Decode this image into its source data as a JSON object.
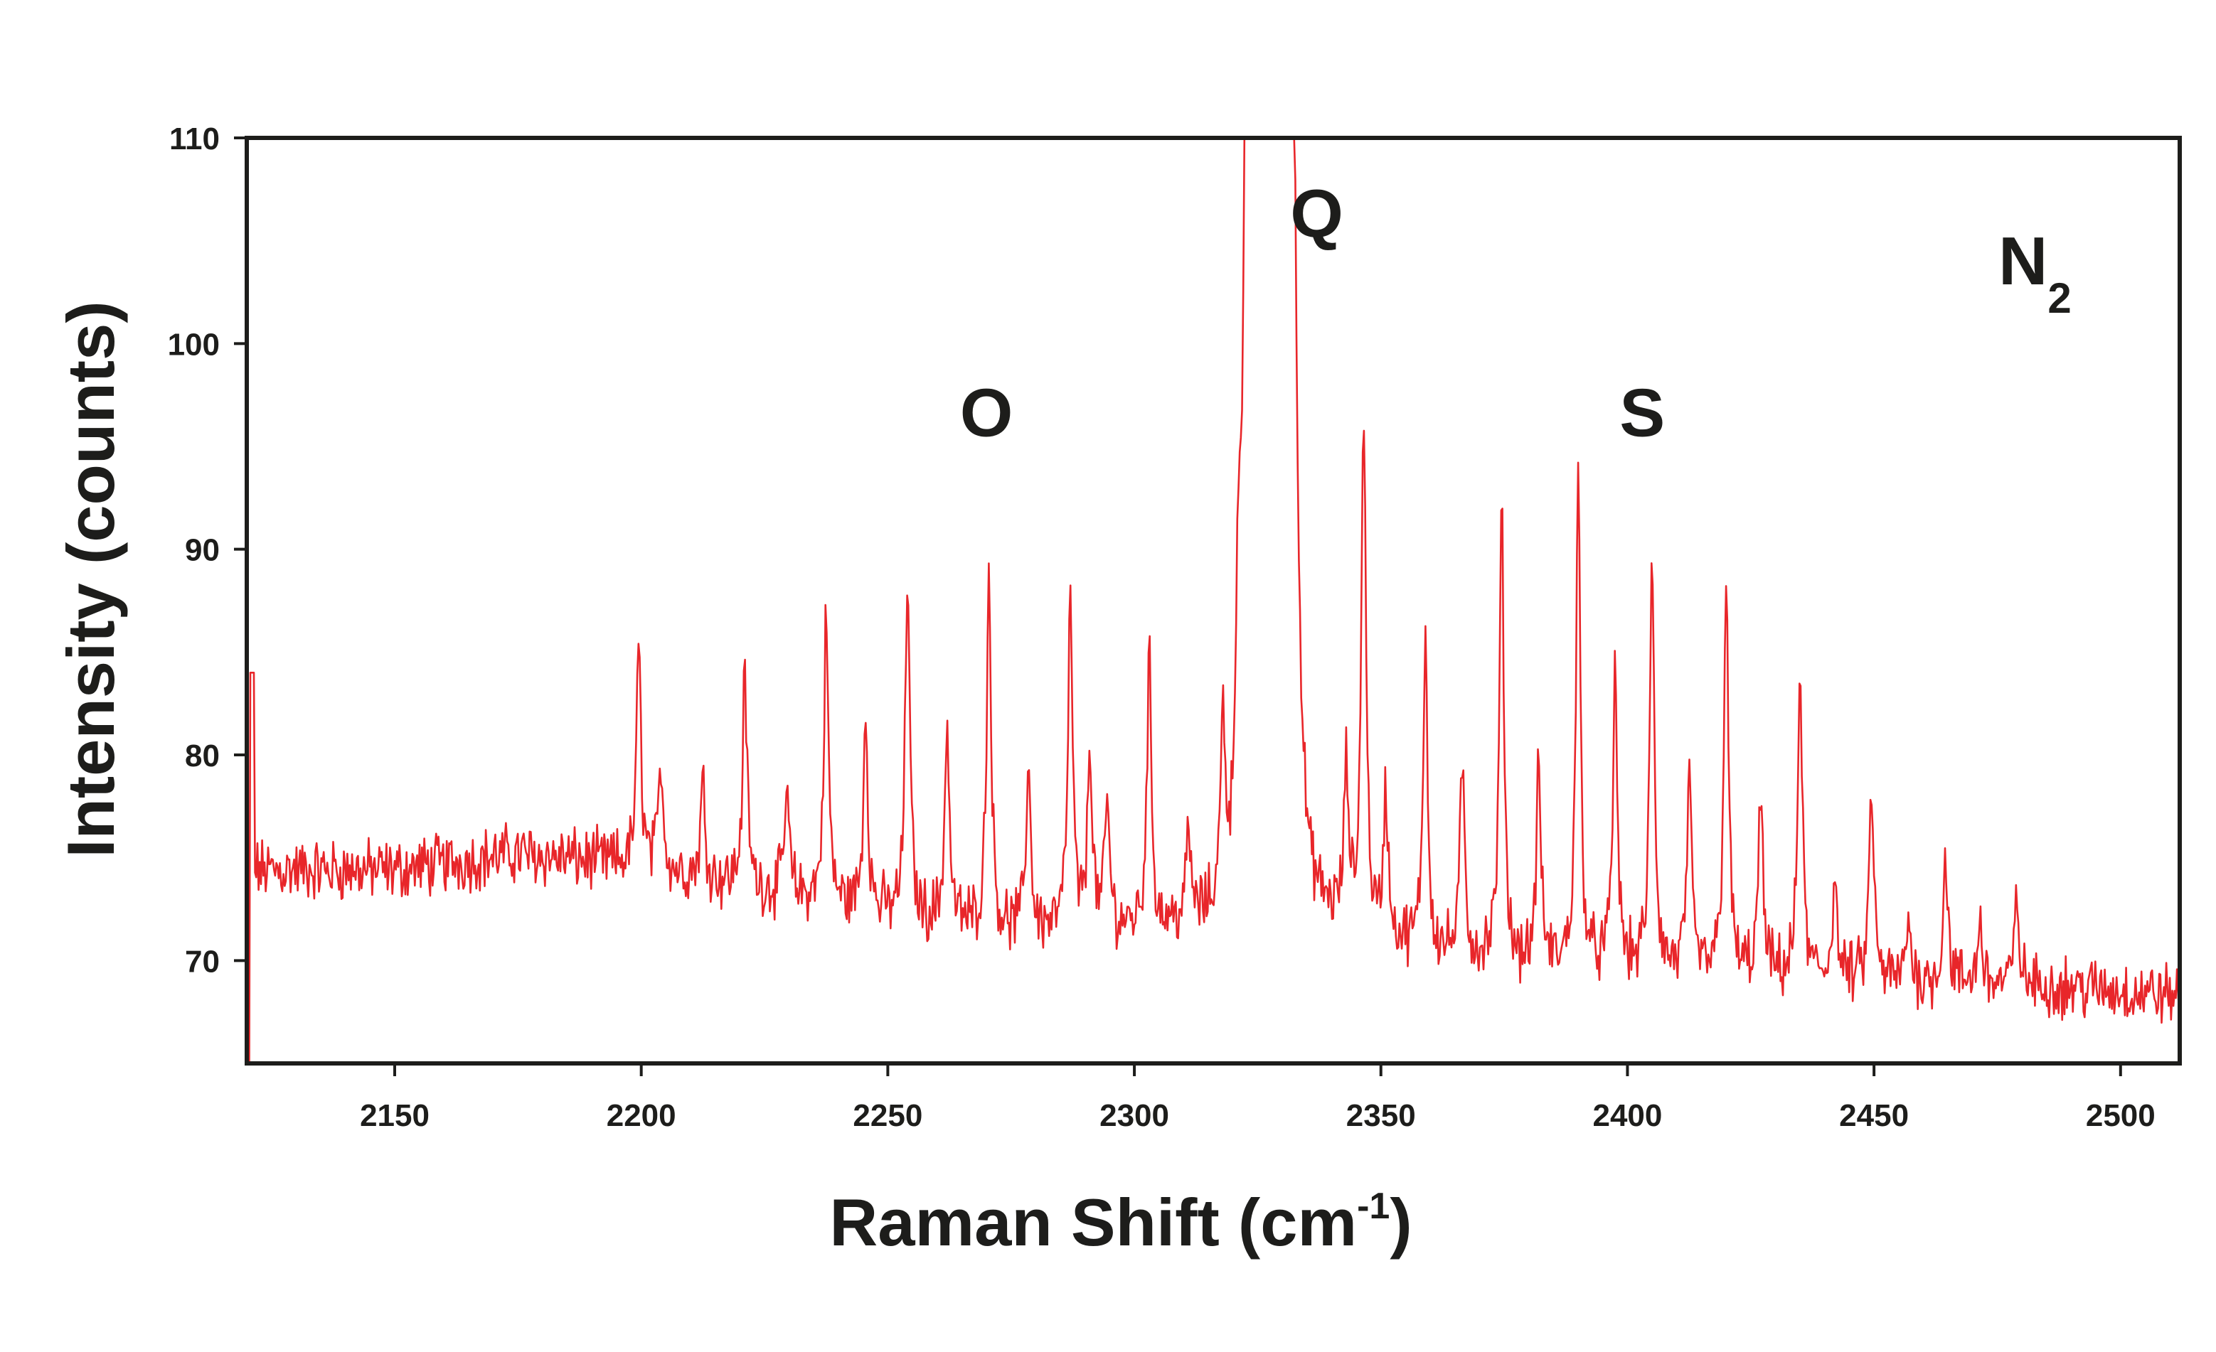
{
  "chart_data": {
    "type": "line",
    "title": "",
    "xlabel": "Raman Shift (cm",
    "xlabel_sup": "-1",
    "xlabel_close": ")",
    "ylabel": "Intensity (counts)",
    "xlim": [
      2120,
      2512
    ],
    "ylim": [
      65,
      110
    ],
    "xticks": [
      2150,
      2200,
      2250,
      2300,
      2350,
      2400,
      2450,
      2500
    ],
    "yticks": [
      70,
      80,
      90,
      100,
      110
    ],
    "grid": false,
    "series": [
      {
        "color": "#e8262a",
        "baseline": [
          [
            2120,
            74.4
          ],
          [
            2150,
            74.4
          ],
          [
            2175,
            75.2
          ],
          [
            2200,
            74.6
          ],
          [
            2225,
            73.4
          ],
          [
            2250,
            72.2
          ],
          [
            2275,
            71.4
          ],
          [
            2300,
            71.6
          ],
          [
            2315,
            71.9
          ],
          [
            2335,
            72.6
          ],
          [
            2345,
            71.4
          ],
          [
            2360,
            70.4
          ],
          [
            2380,
            69.8
          ],
          [
            2400,
            69.6
          ],
          [
            2430,
            69.2
          ],
          [
            2460,
            68.9
          ],
          [
            2490,
            68.7
          ],
          [
            2512,
            68.3
          ]
        ],
        "peaks": [
          [
            2199.5,
            85.0
          ],
          [
            2204.0,
            79.6
          ],
          [
            2212.5,
            78.6
          ],
          [
            2221.0,
            83.8
          ],
          [
            2229.5,
            78.2
          ],
          [
            2237.5,
            86.6
          ],
          [
            2245.5,
            82.0
          ],
          [
            2254.0,
            88.8
          ],
          [
            2262.0,
            81.4
          ],
          [
            2270.5,
            89.0
          ],
          [
            2278.5,
            79.6
          ],
          [
            2287.0,
            87.4
          ],
          [
            2291.0,
            80.4
          ],
          [
            2294.5,
            77.6
          ],
          [
            2303.0,
            84.6
          ],
          [
            2311.0,
            76.0
          ],
          [
            2318.0,
            81.0
          ],
          [
            2321.0,
            83.0
          ],
          [
            2343.0,
            79.0
          ],
          [
            2346.5,
            97.0
          ],
          [
            2351.0,
            78.0
          ],
          [
            2359.0,
            85.6
          ],
          [
            2366.5,
            79.2
          ],
          [
            2374.5,
            91.6
          ],
          [
            2382.0,
            79.2
          ],
          [
            2390.0,
            93.0
          ],
          [
            2397.5,
            83.8
          ],
          [
            2405.0,
            89.4
          ],
          [
            2412.5,
            78.6
          ],
          [
            2420.0,
            88.8
          ],
          [
            2427.0,
            77.8
          ],
          [
            2435.0,
            84.2
          ],
          [
            2442.0,
            74.0
          ],
          [
            2449.5,
            78.4
          ],
          [
            2457.0,
            72.0
          ],
          [
            2464.5,
            75.2
          ],
          [
            2471.5,
            72.0
          ],
          [
            2479.0,
            73.0
          ]
        ],
        "main_peak": {
          "x_start": 2324,
          "x_end": 2331,
          "clipped_at": 110
        }
      }
    ],
    "annotations": [
      {
        "text": "O",
        "x": 2270,
        "y": 95.5
      },
      {
        "text": "Q",
        "x": 2337,
        "y": 105.2
      },
      {
        "text": "S",
        "x": 2403,
        "y": 95.5
      }
    ],
    "species": {
      "base": "N",
      "sub": "2"
    }
  }
}
